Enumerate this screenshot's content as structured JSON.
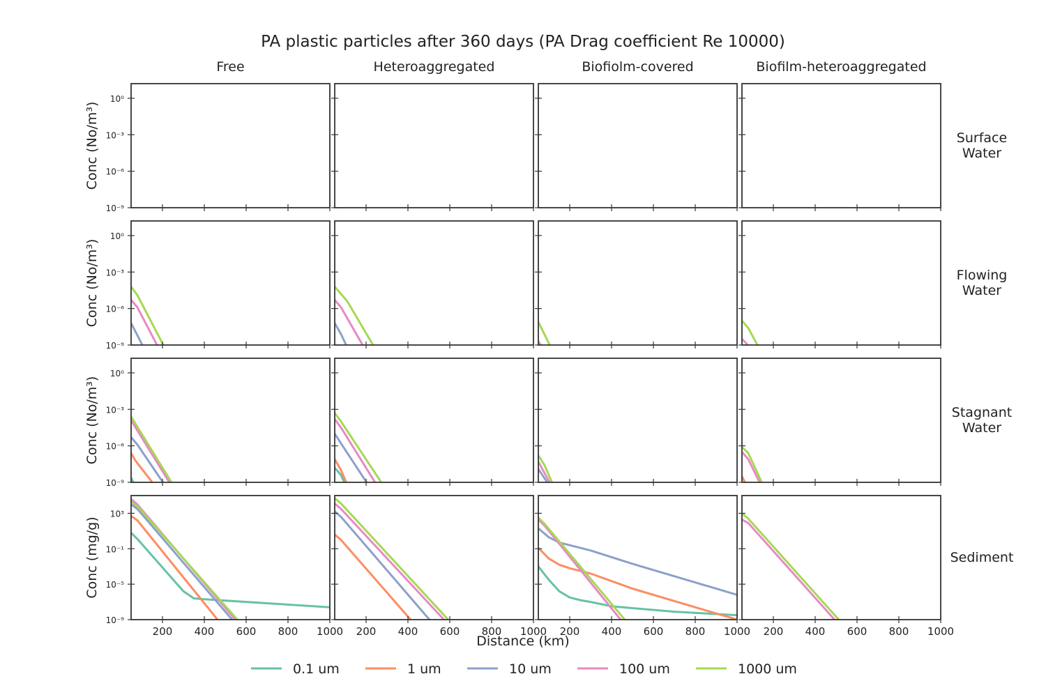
{
  "title": "PA plastic particles after 360 days (PA Drag coefficient Re 10000)",
  "columns": [
    "Free",
    "Heteroaggregated",
    "Biofiolm-covered",
    "Biofilm-heteroaggregated"
  ],
  "rows": [
    {
      "label": [
        "Surface",
        "Water"
      ],
      "ylabel": "Conc (No/m³)"
    },
    {
      "label": [
        "Flowing",
        "Water"
      ],
      "ylabel": "Conc (No/m³)"
    },
    {
      "label": [
        "Stagnant",
        "Water"
      ],
      "ylabel": "Conc (No/m³)"
    },
    {
      "label": [
        "Sediment"
      ],
      "ylabel": "Conc (mg/g)"
    }
  ],
  "xlabel": "Distance (km)",
  "legend": [
    {
      "name": "0.1 um",
      "color": "#66c2a5"
    },
    {
      "name": "1 um",
      "color": "#fc8d62"
    },
    {
      "name": "10 um",
      "color": "#8da0cb"
    },
    {
      "name": "100 um",
      "color": "#e78ac3"
    },
    {
      "name": "1000 um",
      "color": "#a6d854"
    }
  ],
  "chart_data": {
    "type": "line",
    "y_scale": "log",
    "xlim": [
      50,
      1000
    ],
    "x_ticks": [
      200,
      400,
      600,
      800,
      1000
    ],
    "water_ylim_log10": [
      -9,
      1.2
    ],
    "water_yticks": [
      {
        "exp": 0,
        "label": "10⁰"
      },
      {
        "exp": -3,
        "label": "10⁻³"
      },
      {
        "exp": -6,
        "label": "10⁻⁶"
      },
      {
        "exp": -9,
        "label": "10⁻⁹"
      }
    ],
    "sediment_ylim_log10": [
      -9,
      5
    ],
    "sediment_yticks": [
      {
        "exp": 3,
        "label": "10³"
      },
      {
        "exp": -1,
        "label": "10⁻¹"
      },
      {
        "exp": -5,
        "label": "10⁻⁵"
      },
      {
        "exp": -9,
        "label": "10⁻⁹"
      }
    ],
    "panels": [
      [
        {
          "series": []
        },
        {
          "series": []
        },
        {
          "series": []
        },
        {
          "series": []
        }
      ],
      [
        {
          "series": [
            {
              "name": "10 um",
              "points": [
                [
                  50,
                  -7.2
                ],
                [
                  110,
                  -9.2
                ]
              ]
            },
            {
              "name": "100 um",
              "points": [
                [
                  50,
                  -5.3
                ],
                [
                  80,
                  -5.9
                ],
                [
                  180,
                  -9.2
                ]
              ]
            },
            {
              "name": "1000 um",
              "points": [
                [
                  50,
                  -4.2
                ],
                [
                  80,
                  -4.9
                ],
                [
                  210,
                  -9.2
                ]
              ]
            }
          ]
        },
        {
          "series": [
            {
              "name": "10 um",
              "points": [
                [
                  50,
                  -7.2
                ],
                [
                  80,
                  -8.1
                ],
                [
                  110,
                  -9.2
                ]
              ]
            },
            {
              "name": "100 um",
              "points": [
                [
                  50,
                  -5.3
                ],
                [
                  80,
                  -5.9
                ],
                [
                  190,
                  -9.2
                ]
              ]
            },
            {
              "name": "1000 um",
              "points": [
                [
                  50,
                  -4.2
                ],
                [
                  110,
                  -5.4
                ],
                [
                  240,
                  -9.2
                ]
              ]
            }
          ]
        },
        {
          "series": [
            {
              "name": "100 um",
              "points": [
                [
                  50,
                  -8.7
                ],
                [
                  70,
                  -9.2
                ]
              ]
            },
            {
              "name": "1000 um",
              "points": [
                [
                  50,
                  -7.1
                ],
                [
                  110,
                  -9.2
                ]
              ]
            }
          ]
        },
        {
          "series": [
            {
              "name": "100 um",
              "points": [
                [
                  50,
                  -8.5
                ],
                [
                  90,
                  -9.2
                ]
              ]
            },
            {
              "name": "1000 um",
              "points": [
                [
                  50,
                  -7.0
                ],
                [
                  80,
                  -7.6
                ],
                [
                  130,
                  -9.2
                ]
              ]
            }
          ]
        }
      ],
      [
        {
          "series": [
            {
              "name": "0.1 um",
              "points": [
                [
                  50,
                  -8.6
                ],
                [
                  65,
                  -9.2
                ]
              ]
            },
            {
              "name": "1 um",
              "points": [
                [
                  50,
                  -6.6
                ],
                [
                  70,
                  -7.2
                ],
                [
                  160,
                  -9.2
                ]
              ]
            },
            {
              "name": "10 um",
              "points": [
                [
                  50,
                  -5.3
                ],
                [
                  80,
                  -5.9
                ],
                [
                  210,
                  -9.2
                ]
              ]
            },
            {
              "name": "100 um",
              "points": [
                [
                  50,
                  -3.9
                ],
                [
                  240,
                  -9.2
                ]
              ]
            },
            {
              "name": "1000 um",
              "points": [
                [
                  50,
                  -3.6
                ],
                [
                  250,
                  -9.2
                ]
              ]
            }
          ]
        },
        {
          "series": [
            {
              "name": "0.1 um",
              "points": [
                [
                  50,
                  -7.8
                ],
                [
                  80,
                  -8.4
                ],
                [
                  100,
                  -9.2
                ]
              ]
            },
            {
              "name": "1 um",
              "points": [
                [
                  50,
                  -7.1
                ],
                [
                  80,
                  -8.0
                ],
                [
                  110,
                  -9.2
                ]
              ]
            },
            {
              "name": "10 um",
              "points": [
                [
                  50,
                  -5.0
                ],
                [
                  80,
                  -5.8
                ],
                [
                  210,
                  -9.2
                ]
              ]
            },
            {
              "name": "100 um",
              "points": [
                [
                  50,
                  -3.8
                ],
                [
                  80,
                  -4.5
                ],
                [
                  250,
                  -9.2
                ]
              ]
            },
            {
              "name": "1000 um",
              "points": [
                [
                  50,
                  -3.3
                ],
                [
                  80,
                  -4.0
                ],
                [
                  280,
                  -9.2
                ]
              ]
            }
          ]
        },
        {
          "series": [
            {
              "name": "10 um",
              "points": [
                [
                  50,
                  -7.9
                ],
                [
                  100,
                  -9.2
                ]
              ]
            },
            {
              "name": "100 um",
              "points": [
                [
                  50,
                  -7.3
                ],
                [
                  110,
                  -9.2
                ]
              ]
            },
            {
              "name": "1000 um",
              "points": [
                [
                  50,
                  -6.8
                ],
                [
                  80,
                  -7.6
                ],
                [
                  120,
                  -9.2
                ]
              ]
            }
          ]
        },
        {
          "series": [
            {
              "name": "1 um",
              "points": [
                [
                  50,
                  -8.5
                ],
                [
                  70,
                  -9.2
                ]
              ]
            },
            {
              "name": "100 um",
              "points": [
                [
                  50,
                  -6.5
                ],
                [
                  80,
                  -7.1
                ],
                [
                  140,
                  -9.2
                ]
              ]
            },
            {
              "name": "1000 um",
              "points": [
                [
                  50,
                  -6.1
                ],
                [
                  80,
                  -6.6
                ],
                [
                  150,
                  -9.2
                ]
              ]
            }
          ]
        }
      ],
      [
        {
          "series": [
            {
              "name": "0.1 um",
              "points": [
                [
                  50,
                  0.8
                ],
                [
                  80,
                  0.1
                ],
                [
                  300,
                  -5.8
                ],
                [
                  350,
                  -6.6
                ],
                [
                  400,
                  -6.7
                ],
                [
                  1000,
                  -7.6
                ]
              ]
            },
            {
              "name": "1 um",
              "points": [
                [
                  50,
                  2.7
                ],
                [
                  80,
                  2.2
                ],
                [
                  470,
                  -9.2
                ]
              ]
            },
            {
              "name": "10 um",
              "points": [
                [
                  50,
                  4.0
                ],
                [
                  80,
                  3.5
                ],
                [
                  540,
                  -9.2
                ]
              ]
            },
            {
              "name": "100 um",
              "points": [
                [
                  50,
                  4.6
                ],
                [
                  80,
                  4.0
                ],
                [
                  555,
                  -9.2
                ]
              ]
            },
            {
              "name": "1000 um",
              "points": [
                [
                  50,
                  4.3
                ],
                [
                  80,
                  3.8
                ],
                [
                  565,
                  -9.2
                ]
              ]
            }
          ]
        },
        {
          "series": [
            {
              "name": "1 um",
              "points": [
                [
                  50,
                  0.6
                ],
                [
                  80,
                  0.0
                ],
                [
                  420,
                  -9.2
                ]
              ]
            },
            {
              "name": "10 um",
              "points": [
                [
                  50,
                  3.2
                ],
                [
                  80,
                  2.6
                ],
                [
                  510,
                  -9.2
                ]
              ]
            },
            {
              "name": "100 um",
              "points": [
                [
                  50,
                  4.1
                ],
                [
                  80,
                  3.5
                ],
                [
                  580,
                  -9.2
                ]
              ]
            },
            {
              "name": "1000 um",
              "points": [
                [
                  50,
                  4.7
                ],
                [
                  80,
                  4.1
                ],
                [
                  600,
                  -9.2
                ]
              ]
            }
          ]
        },
        {
          "series": [
            {
              "name": "0.1 um",
              "points": [
                [
                  50,
                  -3.0
                ],
                [
                  100,
                  -4.5
                ],
                [
                  150,
                  -5.8
                ],
                [
                  200,
                  -6.5
                ],
                [
                  250,
                  -6.8
                ],
                [
                  300,
                  -7.0
                ],
                [
                  400,
                  -7.5
                ],
                [
                  500,
                  -7.7
                ],
                [
                  700,
                  -8.1
                ],
                [
                  1000,
                  -8.5
                ]
              ]
            },
            {
              "name": "1 um",
              "points": [
                [
                  50,
                  -0.9
                ],
                [
                  100,
                  -2.1
                ],
                [
                  150,
                  -2.8
                ],
                [
                  200,
                  -3.2
                ],
                [
                  300,
                  -3.8
                ],
                [
                  500,
                  -5.5
                ],
                [
                  1000,
                  -9.0
                ]
              ]
            },
            {
              "name": "10 um",
              "points": [
                [
                  50,
                  1.3
                ],
                [
                  100,
                  0.3
                ],
                [
                  150,
                  -0.3
                ],
                [
                  200,
                  -0.6
                ],
                [
                  300,
                  -1.2
                ],
                [
                  500,
                  -2.7
                ],
                [
                  1000,
                  -6.2
                ]
              ]
            },
            {
              "name": "100 um",
              "points": [
                [
                  50,
                  2.3
                ],
                [
                  80,
                  1.6
                ],
                [
                  450,
                  -9.2
                ]
              ]
            },
            {
              "name": "1000 um",
              "points": [
                [
                  50,
                  2.5
                ],
                [
                  80,
                  1.8
                ],
                [
                  470,
                  -9.2
                ]
              ]
            }
          ]
        },
        {
          "series": [
            {
              "name": "100 um",
              "points": [
                [
                  50,
                  2.3
                ],
                [
                  80,
                  1.9
                ],
                [
                  500,
                  -9.2
                ]
              ]
            },
            {
              "name": "1000 um",
              "points": [
                [
                  50,
                  3.0
                ],
                [
                  80,
                  2.4
                ],
                [
                  520,
                  -9.2
                ]
              ]
            }
          ]
        }
      ]
    ]
  }
}
